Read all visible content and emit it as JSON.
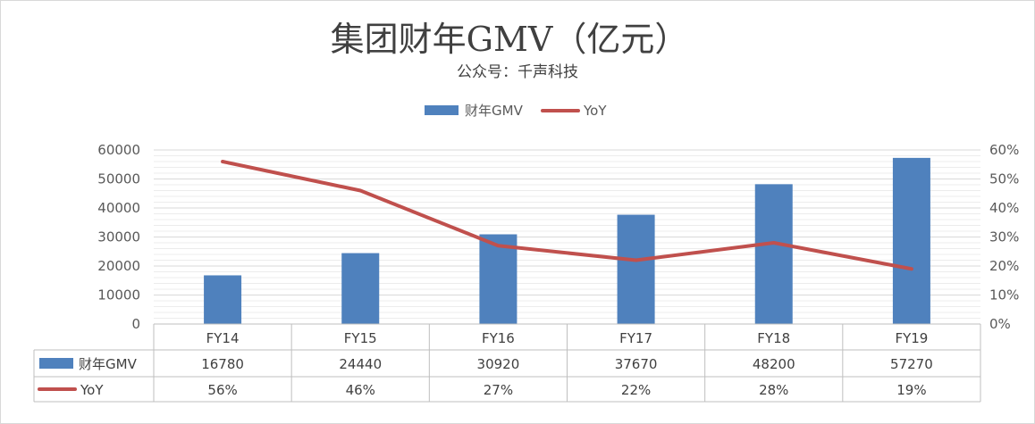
{
  "chart_data": {
    "type": "bar",
    "title": "集团财年GMV（亿元）",
    "subtitle": "公众号：千声科技",
    "categories": [
      "FY14",
      "FY15",
      "FY16",
      "FY17",
      "FY18",
      "FY19"
    ],
    "series": [
      {
        "name": "财年GMV",
        "type": "bar",
        "axis": "left",
        "color": "#4F81BD",
        "values": [
          16780,
          24440,
          30920,
          37670,
          48200,
          57270
        ]
      },
      {
        "name": "YoY",
        "type": "line",
        "axis": "right",
        "color": "#C0504D",
        "values": [
          56,
          46,
          27,
          22,
          28,
          19
        ],
        "labels": [
          "56%",
          "46%",
          "27%",
          "22%",
          "28%",
          "19%"
        ]
      }
    ],
    "ylim": [
      0,
      60000
    ],
    "yticks": [
      "0",
      "10000",
      "20000",
      "30000",
      "40000",
      "50000",
      "60000"
    ],
    "y2lim": [
      0,
      60
    ],
    "y2ticks": [
      "0%",
      "10%",
      "20%",
      "30%",
      "40%",
      "50%",
      "60%"
    ],
    "legend_position": "top-center",
    "grid": true,
    "data_table": true
  }
}
